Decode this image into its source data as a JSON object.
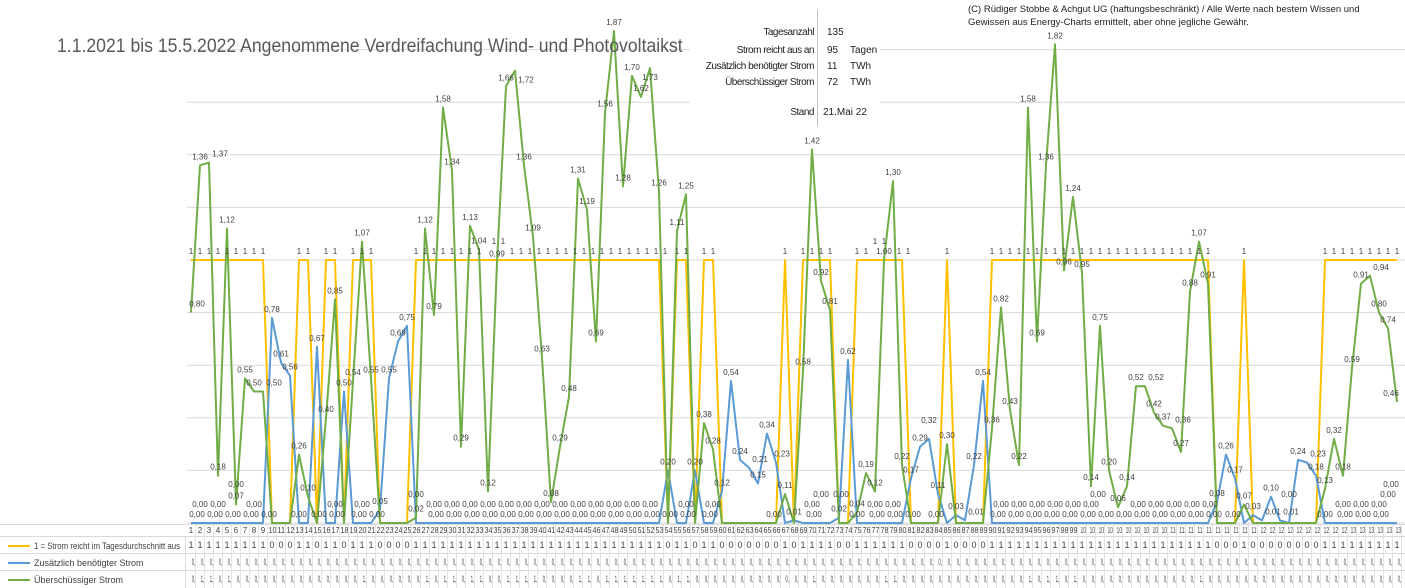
{
  "title": "1.1.2021 bis 15.5.2022 Angenommene Verdreifachung Wind- und Photovoltaikst",
  "copyright": [
    "(C) Rüdiger Stobbe & Achgut UG (haftungsbeschränkt) / Alle Werte nach bestem Wissen und",
    "Gewissen aus Energy-Charts ermittelt, aber ohne jegliche Gewähr."
  ],
  "info": {
    "rows": [
      {
        "label": "Tagesanzahl",
        "value": "135",
        "unit": ""
      },
      {
        "label": "Strom reicht aus an",
        "value": "95",
        "unit": "Tagen"
      },
      {
        "label": "Zusätzlich benötigter Strom",
        "value": "11",
        "unit": "TWh"
      },
      {
        "label": "Überschüssiger Strom",
        "value": "72",
        "unit": "TWh"
      }
    ],
    "stand_label": "Stand",
    "stand_value": "21.Mai 22"
  },
  "chart_data": {
    "type": "line",
    "title": "1.1.2021 bis 15.5.2022 Angenommene Verdreifachung Wind- und Photovoltaikst",
    "xlabel": "",
    "ylabel": "",
    "ylim": [
      0,
      2
    ],
    "grid": true,
    "legend": "bottom-table",
    "x_start": 1,
    "x_count": 135,
    "series": [
      {
        "name": "1 = Strom reicht im Tagesdurchschnitt aus",
        "color": "#ffc000",
        "label_mode": "ones",
        "values": [
          1,
          1,
          1,
          1,
          1,
          1,
          1,
          1,
          1,
          0,
          0,
          0,
          1,
          1,
          0,
          1,
          1,
          0,
          1,
          1,
          1,
          0,
          0,
          0,
          0,
          1,
          1,
          1,
          1,
          1,
          1,
          1,
          1,
          1,
          1,
          1,
          1,
          1,
          1,
          1,
          1,
          1,
          1,
          1,
          1,
          1,
          1,
          1,
          1,
          1,
          1,
          1,
          1,
          0,
          1,
          1,
          0,
          1,
          1,
          0,
          0,
          0,
          0,
          0,
          0,
          0,
          1,
          0,
          1,
          1,
          1,
          1,
          0,
          0,
          1,
          1,
          1,
          1,
          1,
          1,
          0,
          0,
          0,
          0,
          1,
          0,
          0,
          0,
          0,
          1,
          1,
          1,
          1,
          1,
          1,
          1,
          1,
          1,
          1,
          1,
          1,
          1,
          1,
          1,
          1,
          1,
          1,
          1,
          1,
          1,
          1,
          1,
          1,
          1,
          0,
          0,
          0,
          1,
          0,
          0,
          0,
          0,
          0,
          0,
          0,
          0,
          1,
          1,
          1,
          1,
          1,
          1,
          1,
          1,
          1
        ]
      },
      {
        "name": "Zusätzlich benötigter Strom",
        "color": "#5b9bd5",
        "label_mode": "all",
        "values": [
          0,
          0,
          0,
          0,
          0,
          0,
          0,
          0,
          0,
          0.78,
          0.61,
          0.56,
          0,
          0,
          0.67,
          0,
          0,
          0.5,
          0,
          0,
          0,
          0.05,
          0.55,
          0.69,
          0.75,
          0,
          0,
          0,
          0,
          0,
          0,
          0,
          0,
          0,
          0,
          0,
          0,
          0,
          0,
          0,
          0,
          0,
          0,
          0,
          0,
          0,
          0,
          0,
          0,
          0,
          0,
          0,
          0,
          0.2,
          0,
          0,
          0.2,
          0,
          0,
          0.12,
          0.54,
          0.24,
          0.21,
          0.15,
          0.34,
          0.23,
          0,
          0.01,
          0,
          0,
          0,
          0,
          0.02,
          0.62,
          0,
          0,
          0,
          0,
          0,
          0,
          0.17,
          0.29,
          0.32,
          0.11,
          0,
          0.03,
          0.01,
          0.22,
          0.54,
          0,
          0,
          0,
          0,
          0,
          0,
          0,
          0,
          0,
          0,
          0,
          0,
          0,
          0,
          0,
          0,
          0,
          0,
          0,
          0,
          0,
          0,
          0,
          0,
          0,
          0.08,
          0.26,
          0.17,
          0,
          0.03,
          0.01,
          0.1,
          0.01,
          0.0,
          0.24,
          0.23,
          0.18,
          0,
          0,
          0,
          0,
          0,
          0,
          0,
          0,
          0
        ]
      },
      {
        "name": "Überschüssiger Strom",
        "color": "#70ad47",
        "label_mode": "nonzero",
        "values": [
          0.8,
          1.36,
          1.37,
          0.18,
          1.12,
          0.07,
          0.55,
          0.5,
          0.5,
          0,
          0,
          0,
          0.26,
          0.1,
          0,
          0.4,
          0.85,
          0,
          0.54,
          1.07,
          0.55,
          0,
          0,
          0,
          0,
          0.02,
          1.12,
          0.79,
          1.58,
          1.34,
          0.29,
          1.13,
          1.04,
          0.12,
          0.99,
          1.66,
          1.72,
          1.36,
          1.09,
          0.63,
          0.08,
          0.29,
          0.48,
          1.31,
          1.19,
          0.69,
          1.56,
          1.87,
          1.28,
          1.7,
          1.62,
          1.73,
          1.26,
          0,
          1.11,
          1.25,
          0,
          0.38,
          0.28,
          0,
          0,
          0,
          0,
          0,
          0,
          0,
          0.11,
          0,
          0.58,
          1.42,
          0.92,
          0.81,
          0,
          0,
          0.04,
          0.19,
          0.12,
          1.0,
          1.3,
          0.22,
          0,
          0,
          0,
          0,
          0.3,
          0,
          0,
          0,
          0,
          0.36,
          0.82,
          0.43,
          0.22,
          1.58,
          0.69,
          1.36,
          1.82,
          0.96,
          1.24,
          0.95,
          0.14,
          0.75,
          0.2,
          0.06,
          0.14,
          0.52,
          0.52,
          0.42,
          0.37,
          0.36,
          0.27,
          0.88,
          1.07,
          0.91,
          0,
          0,
          0,
          0.07,
          0,
          0,
          0,
          0,
          0,
          0,
          0,
          0,
          0.13,
          0.32,
          0.18,
          0.59,
          0.91,
          0.94,
          0.8,
          0.74,
          0.46
        ]
      }
    ]
  }
}
